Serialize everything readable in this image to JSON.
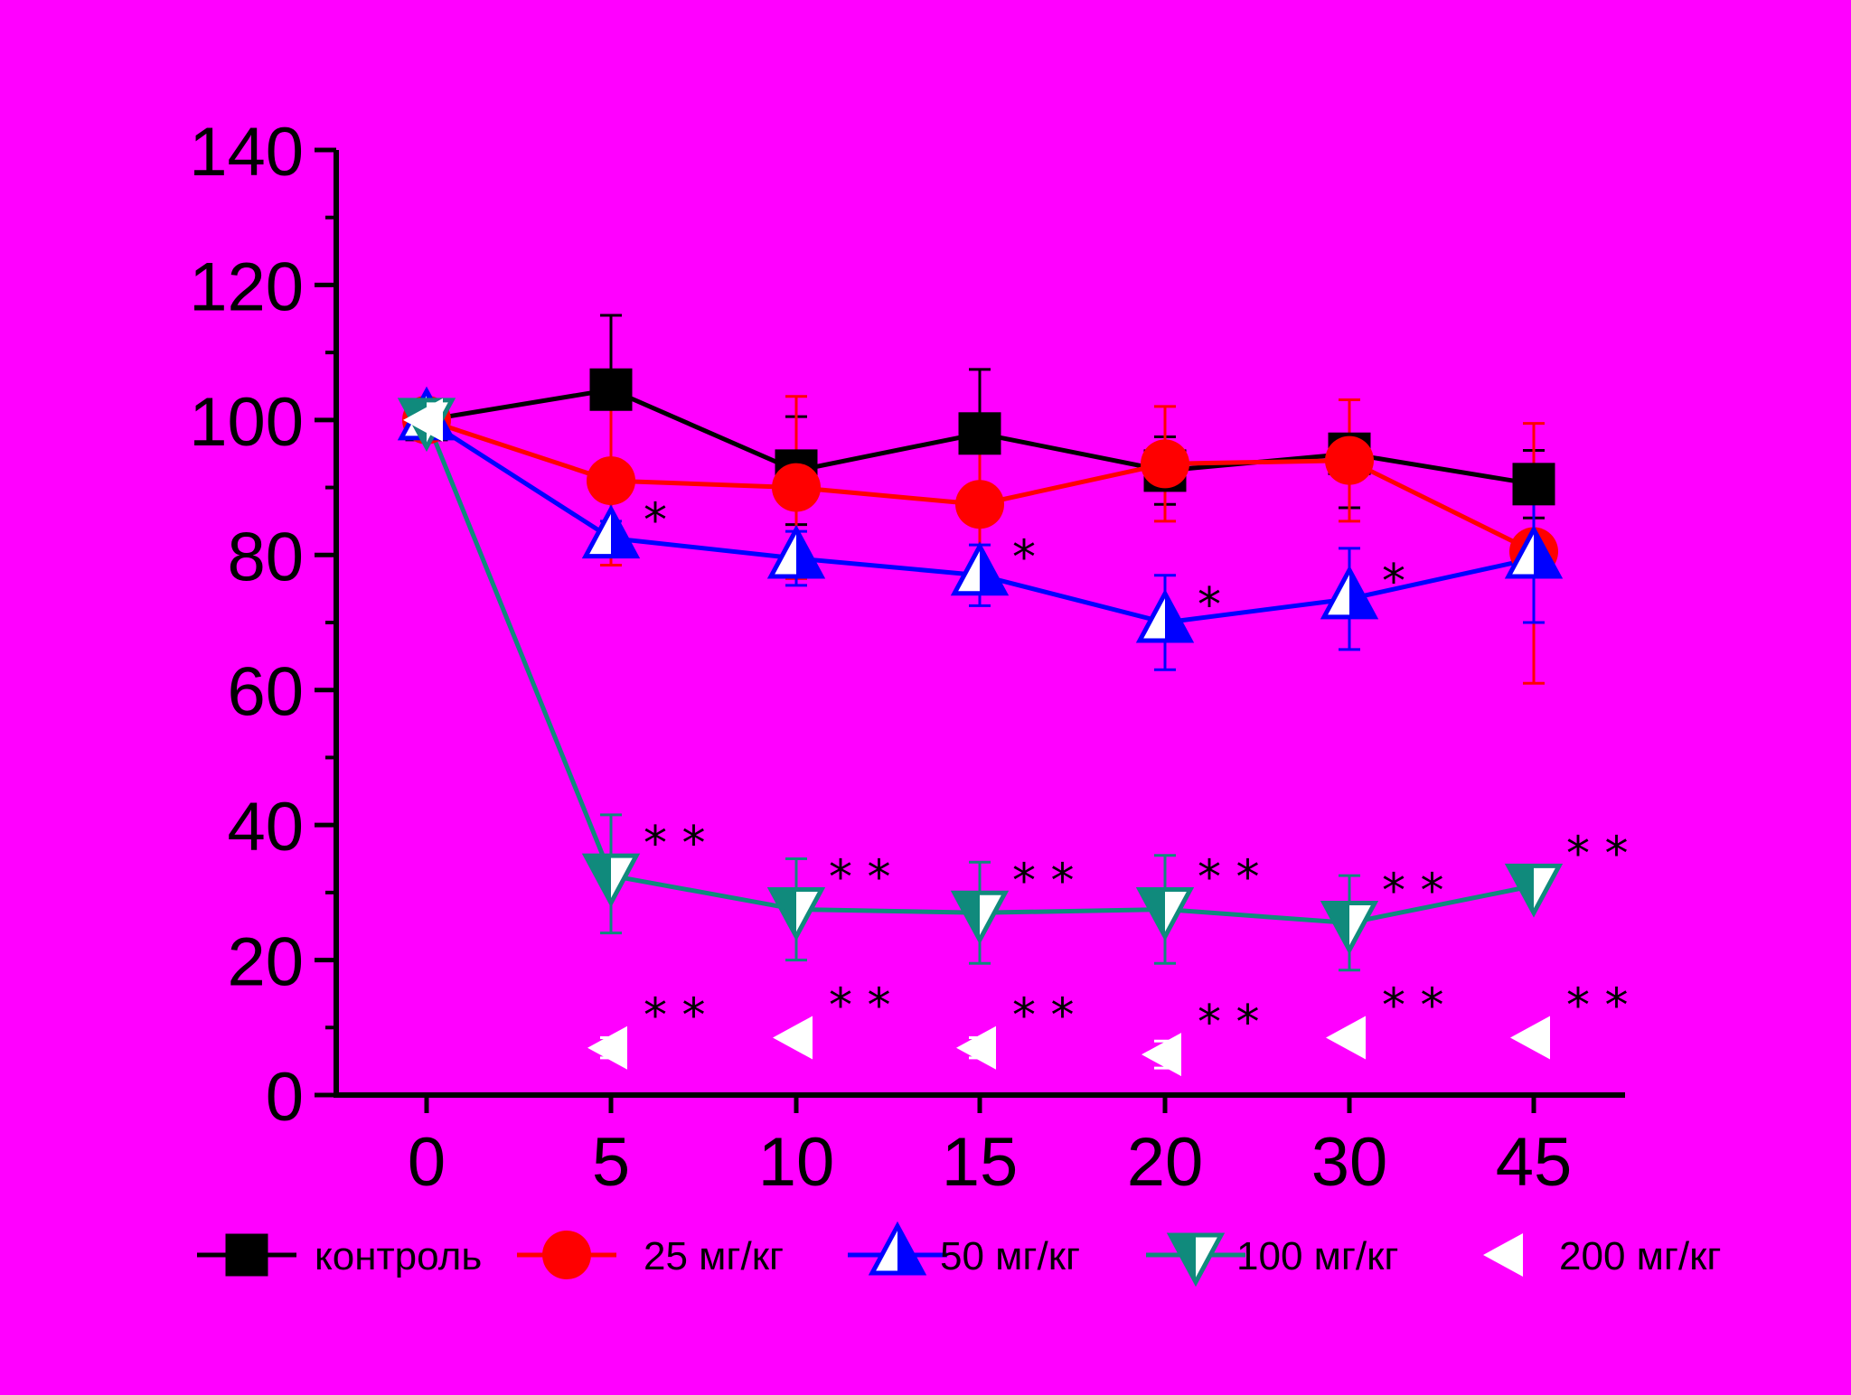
{
  "colors": {
    "background": "#ff00ff",
    "axis": "#000000"
  },
  "chart_data": {
    "type": "line",
    "x_ticks": [
      "0",
      "5",
      "10",
      "15",
      "20",
      "30",
      "45"
    ],
    "y_ticks": [
      "0",
      "20",
      "40",
      "60",
      "80",
      "100",
      "120",
      "140"
    ],
    "ylim": [
      0,
      140
    ],
    "xlabel": "",
    "ylabel": "",
    "legend_placement": "bottom",
    "series": [
      {
        "name": "контроль",
        "color": "#000000",
        "marker": "square-filled",
        "line": true,
        "values": [
          100,
          104.5,
          92.5,
          98,
          92.5,
          95,
          90.5
        ],
        "err_upper": [
          1.5,
          11,
          8,
          9.5,
          5,
          8,
          5
        ],
        "err_lower": [
          1.5,
          11,
          8,
          9.5,
          5,
          8,
          5
        ],
        "significance": [
          "",
          "",
          "",
          "",
          "",
          "",
          ""
        ]
      },
      {
        "name": "25 мг/кг",
        "color": "#ff0000",
        "marker": "circle-filled",
        "line": true,
        "values": [
          100,
          91,
          90,
          87.5,
          93.5,
          94,
          80.5
        ],
        "err_upper": [
          1.5,
          12.5,
          13.5,
          11,
          8.5,
          9,
          19
        ],
        "err_lower": [
          1.5,
          12.5,
          13.5,
          11,
          8.5,
          9,
          19.5
        ],
        "significance": [
          "",
          "",
          "",
          "",
          "",
          "",
          ""
        ]
      },
      {
        "name": "50 мг/кг",
        "color": "#0000ff",
        "marker": "triangle-up-half",
        "line": true,
        "values": [
          100,
          82.5,
          79.5,
          77,
          70,
          73.5,
          79.5
        ],
        "err_upper": [
          1.5,
          2.5,
          4,
          4.5,
          7,
          7.5,
          9
        ],
        "err_lower": [
          1.5,
          2.5,
          4,
          4.5,
          7,
          7.5,
          9.5
        ],
        "significance": [
          "",
          "*",
          "",
          "*",
          "*",
          "*",
          ""
        ]
      },
      {
        "name": "100 мг/кг",
        "color": "#108a7c",
        "marker": "triangle-down-half",
        "line": true,
        "values": [
          100,
          32.5,
          27.5,
          27,
          27.5,
          25.5,
          31
        ],
        "err_upper": [
          1.5,
          9,
          7.5,
          7.5,
          8,
          7,
          0
        ],
        "err_lower": [
          1.5,
          8.5,
          7.5,
          7.5,
          8,
          7,
          0
        ],
        "significance": [
          "",
          "**",
          "**",
          "**",
          "**",
          "**",
          "**"
        ]
      },
      {
        "name": "200 мг/кг",
        "color": "#ffffff",
        "marker": "triangle-left",
        "line": false,
        "values": [
          100,
          7,
          8.5,
          7,
          6,
          8.5,
          8.5
        ],
        "err_upper": [
          0,
          1.5,
          0,
          1.5,
          2,
          0,
          0
        ],
        "err_lower": [
          0,
          1.5,
          0,
          1.5,
          2,
          0,
          0
        ],
        "significance": [
          "",
          "**",
          "**",
          "**",
          "**",
          "**",
          "**"
        ]
      }
    ]
  }
}
